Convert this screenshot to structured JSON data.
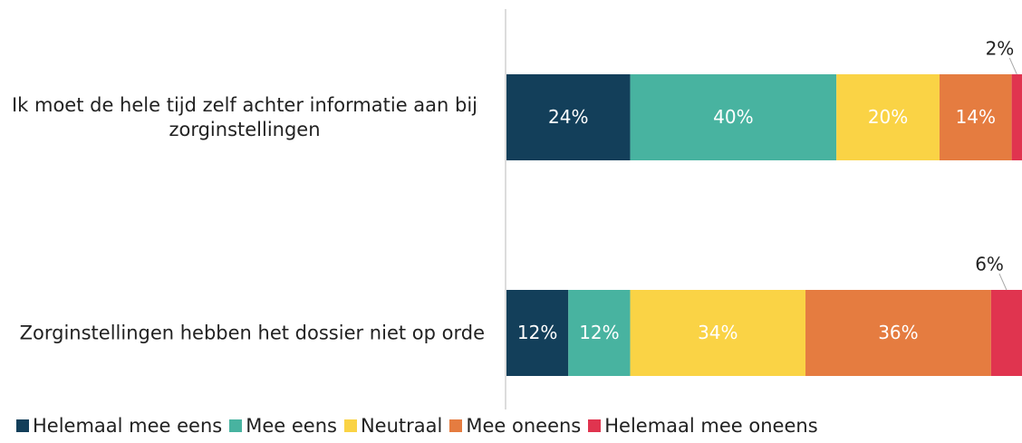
{
  "chart_data": {
    "type": "stacked_barh",
    "categories": [
      "Ik moet de hele tijd zelf achter informatie aan bij zorginstellingen",
      "Zorginstellingen hebben het dossier niet op orde"
    ],
    "series": [
      {
        "name": "Helemaal mee eens",
        "color": "#133f5a",
        "values": [
          24,
          12
        ],
        "value_labels": [
          "24%",
          "12%"
        ]
      },
      {
        "name": "Mee eens",
        "color": "#48b3a0",
        "values": [
          40,
          12
        ],
        "value_labels": [
          "40%",
          "12%"
        ]
      },
      {
        "name": "Neutraal",
        "color": "#fad345",
        "values": [
          20,
          34
        ],
        "value_labels": [
          "20%",
          "34%"
        ]
      },
      {
        "name": "Mee oneens",
        "color": "#e57c40",
        "values": [
          14,
          36
        ],
        "value_labels": [
          "14%",
          "36%"
        ]
      },
      {
        "name": "Helemaal mee oneens",
        "color": "#e0344f",
        "values": [
          2,
          6
        ],
        "value_labels": [
          "2%",
          "6%"
        ]
      }
    ],
    "xlim": [
      0,
      100
    ],
    "legend": "bottom"
  }
}
